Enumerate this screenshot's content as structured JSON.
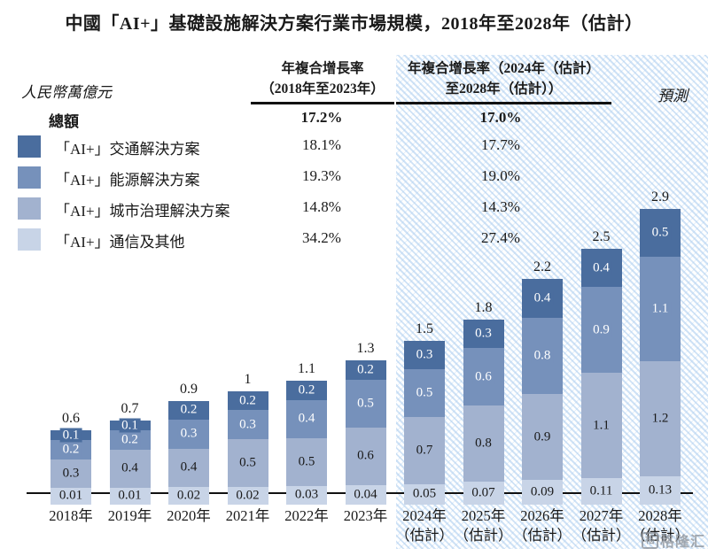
{
  "title": "中國「AI+」基礎設施解決方案行業市場規模，2018年至2028年（估計）",
  "unit_label": "人民幣萬億元",
  "forecast_label": "預測",
  "watermark": {
    "icon_char": "格",
    "text": "格隆汇"
  },
  "cagr_table": {
    "col1_header_line1": "年複合增長率",
    "col1_header_line2": "（2018年至2023年）",
    "col2_header_line1": "年複合增長率（2024年（估計）",
    "col2_header_line2": "至2028年（估計））",
    "rows": [
      {
        "label": "總額",
        "cagr_2018_2023": "17.2%",
        "cagr_2024_2028": "17.0%"
      },
      {
        "label": "「AI+」交通解決方案",
        "cagr_2018_2023": "18.1%",
        "cagr_2024_2028": "17.7%",
        "color": "#4a6d9e"
      },
      {
        "label": "「AI+」能源解決方案",
        "cagr_2018_2023": "19.3%",
        "cagr_2024_2028": "19.0%",
        "color": "#7691bb"
      },
      {
        "label": "「AI+」城市治理解決方案",
        "cagr_2018_2023": "14.8%",
        "cagr_2024_2028": "14.3%",
        "color": "#a2b2cf"
      },
      {
        "label": "「AI+」通信及其他",
        "cagr_2018_2023": "34.2%",
        "cagr_2024_2028": "27.4%",
        "color": "#c8d4e7"
      }
    ]
  },
  "chart_data": {
    "type": "bar",
    "stacked": true,
    "title": "中國「AI+」基礎設施解決方案行業市場規模，2018年至2028年（估計）",
    "ylabel": "人民幣萬億元",
    "xlabel": "",
    "ylim": [
      0,
      3.0
    ],
    "grid": false,
    "legend_position": "left-table",
    "categories": [
      {
        "label": "2018年",
        "sublabel": ""
      },
      {
        "label": "2019年",
        "sublabel": ""
      },
      {
        "label": "2020年",
        "sublabel": ""
      },
      {
        "label": "2021年",
        "sublabel": ""
      },
      {
        "label": "2022年",
        "sublabel": ""
      },
      {
        "label": "2023年",
        "sublabel": ""
      },
      {
        "label": "2024年",
        "sublabel": "（估計）"
      },
      {
        "label": "2025年",
        "sublabel": "（估計）"
      },
      {
        "label": "2026年",
        "sublabel": "（估計）"
      },
      {
        "label": "2027年",
        "sublabel": "（估計）"
      },
      {
        "label": "2028年",
        "sublabel": "（估計）"
      }
    ],
    "series_order": "bottom-to-top",
    "series": [
      {
        "name": "「AI+」通信及其他",
        "color": "#c8d4e7",
        "label_color": "#1a1a1a",
        "values": [
          0.01,
          0.01,
          0.02,
          0.02,
          0.03,
          0.04,
          0.05,
          0.07,
          0.09,
          0.11,
          0.13
        ]
      },
      {
        "name": "「AI+」城市治理解決方案",
        "color": "#a2b2cf",
        "label_color": "#1a1a1a",
        "values": [
          0.3,
          0.4,
          0.4,
          0.5,
          0.5,
          0.6,
          0.7,
          0.8,
          0.9,
          1.1,
          1.2
        ]
      },
      {
        "name": "「AI+」能源解決方案",
        "color": "#7691bb",
        "label_color": "#ffffff",
        "values": [
          0.2,
          0.2,
          0.3,
          0.3,
          0.4,
          0.5,
          0.5,
          0.6,
          0.8,
          0.9,
          1.1
        ]
      },
      {
        "name": "「AI+」交通解決方案",
        "color": "#4a6d9e",
        "label_color": "#ffffff",
        "values": [
          0.1,
          0.1,
          0.2,
          0.2,
          0.2,
          0.2,
          0.3,
          0.3,
          0.4,
          0.4,
          0.5
        ]
      }
    ],
    "totals": [
      0.6,
      0.7,
      0.9,
      1.0,
      1.1,
      1.3,
      1.5,
      1.8,
      2.2,
      2.5,
      2.9
    ],
    "forecast_from_index": 6
  }
}
